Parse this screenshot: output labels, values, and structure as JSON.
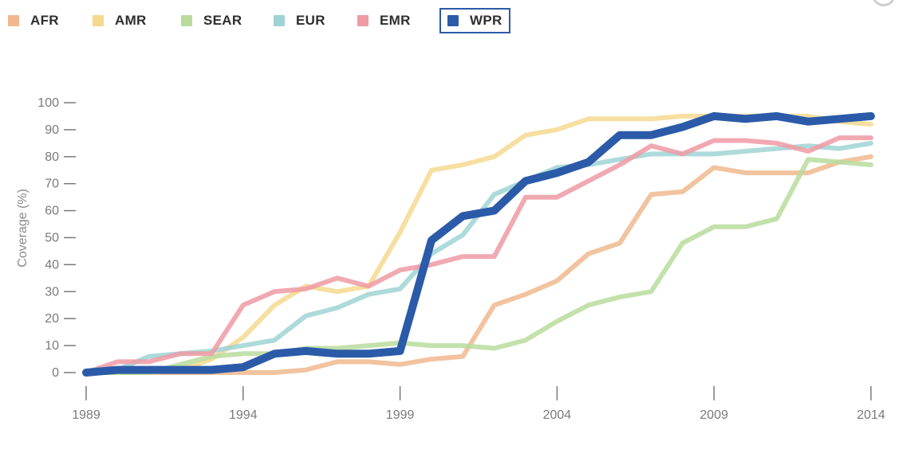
{
  "chart_data": {
    "type": "line",
    "title": "",
    "xlabel": "",
    "ylabel": "Coverage (%)",
    "ylim": [
      0,
      100
    ],
    "xlim": [
      1989,
      2014
    ],
    "y_ticks": [
      0,
      10,
      20,
      30,
      40,
      50,
      60,
      70,
      80,
      90,
      100
    ],
    "x_ticks": [
      "1989",
      "1994",
      "1999",
      "2004",
      "2009",
      "2014"
    ],
    "legend_position": "top-left",
    "selected_series": "WPR",
    "x": [
      1989,
      1990,
      1991,
      1992,
      1993,
      1994,
      1995,
      1996,
      1997,
      1998,
      1999,
      2000,
      2001,
      2002,
      2003,
      2004,
      2005,
      2006,
      2007,
      2008,
      2009,
      2010,
      2011,
      2012,
      2013,
      2014
    ],
    "series": [
      {
        "name": "AFR",
        "color": "#f0b88e",
        "values": [
          0,
          0,
          0,
          0,
          0,
          0,
          0,
          1,
          4,
          4,
          3,
          5,
          6,
          25,
          29,
          34,
          44,
          48,
          66,
          67,
          76,
          74,
          74,
          74,
          78,
          80
        ]
      },
      {
        "name": "AMR",
        "color": "#f5d98f",
        "values": [
          0,
          0,
          0,
          1,
          5,
          13,
          25,
          32,
          30,
          32,
          52,
          75,
          77,
          80,
          88,
          90,
          94,
          94,
          94,
          95,
          95,
          95,
          95,
          95,
          93,
          92
        ]
      },
      {
        "name": "SEAR",
        "color": "#b9dc9c",
        "values": [
          0,
          0,
          0,
          3,
          6,
          7,
          7,
          9,
          9,
          10,
          11,
          10,
          10,
          9,
          12,
          19,
          25,
          28,
          30,
          48,
          54,
          54,
          57,
          79,
          78,
          77
        ]
      },
      {
        "name": "EUR",
        "color": "#9fd3d3",
        "values": [
          0,
          1,
          6,
          7,
          8,
          10,
          12,
          21,
          24,
          29,
          31,
          44,
          51,
          66,
          71,
          76,
          77,
          79,
          81,
          81,
          81,
          82,
          83,
          84,
          83,
          85
        ]
      },
      {
        "name": "EMR",
        "color": "#ee9aa3",
        "values": [
          0,
          4,
          4,
          7,
          7,
          25,
          30,
          31,
          35,
          32,
          38,
          40,
          43,
          43,
          65,
          65,
          71,
          77,
          84,
          81,
          86,
          86,
          85,
          82,
          87,
          87
        ]
      },
      {
        "name": "WPR",
        "color": "#2b5ba8",
        "values": [
          0,
          1,
          1,
          1,
          1,
          2,
          7,
          8,
          7,
          7,
          8,
          49,
          58,
          60,
          71,
          74,
          78,
          88,
          88,
          91,
          95,
          94,
          95,
          93,
          94,
          95
        ]
      }
    ]
  }
}
